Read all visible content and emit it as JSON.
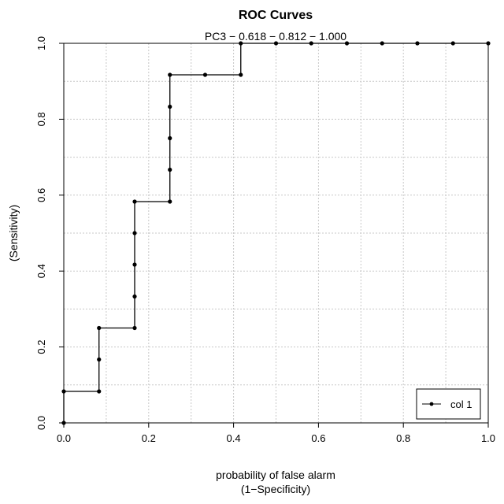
{
  "chart_data": {
    "type": "line",
    "title": "ROC Curves",
    "subtitle": "PC3 − 0.618 − 0.812 − 1.000",
    "xlabel_line1": "probability of false alarm",
    "xlabel_line2": "(1−Specificity)",
    "ylabel": "(Sensitivity)",
    "xlim": [
      0,
      1
    ],
    "ylim": [
      0,
      1
    ],
    "grid": true,
    "legend_position": "bottom-right",
    "x_ticks": [
      "0.0",
      "0.2",
      "0.4",
      "0.6",
      "0.8",
      "1.0"
    ],
    "y_ticks": [
      "0.0",
      "0.2",
      "0.4",
      "0.6",
      "0.8",
      "1.0"
    ],
    "series": [
      {
        "name": "col 1",
        "color": "#000000",
        "step": true,
        "points": [
          [
            0.0,
            0.0
          ],
          [
            0.0,
            0.083
          ],
          [
            0.083,
            0.083
          ],
          [
            0.083,
            0.167
          ],
          [
            0.083,
            0.25
          ],
          [
            0.167,
            0.25
          ],
          [
            0.167,
            0.333
          ],
          [
            0.167,
            0.417
          ],
          [
            0.167,
            0.5
          ],
          [
            0.167,
            0.583
          ],
          [
            0.25,
            0.583
          ],
          [
            0.25,
            0.667
          ],
          [
            0.25,
            0.75
          ],
          [
            0.25,
            0.833
          ],
          [
            0.25,
            0.917
          ],
          [
            0.333,
            0.917
          ],
          [
            0.417,
            0.917
          ],
          [
            0.417,
            1.0
          ],
          [
            0.5,
            1.0
          ],
          [
            0.583,
            1.0
          ],
          [
            0.667,
            1.0
          ],
          [
            0.75,
            1.0
          ],
          [
            0.833,
            1.0
          ],
          [
            0.917,
            1.0
          ],
          [
            1.0,
            1.0
          ]
        ]
      }
    ]
  }
}
